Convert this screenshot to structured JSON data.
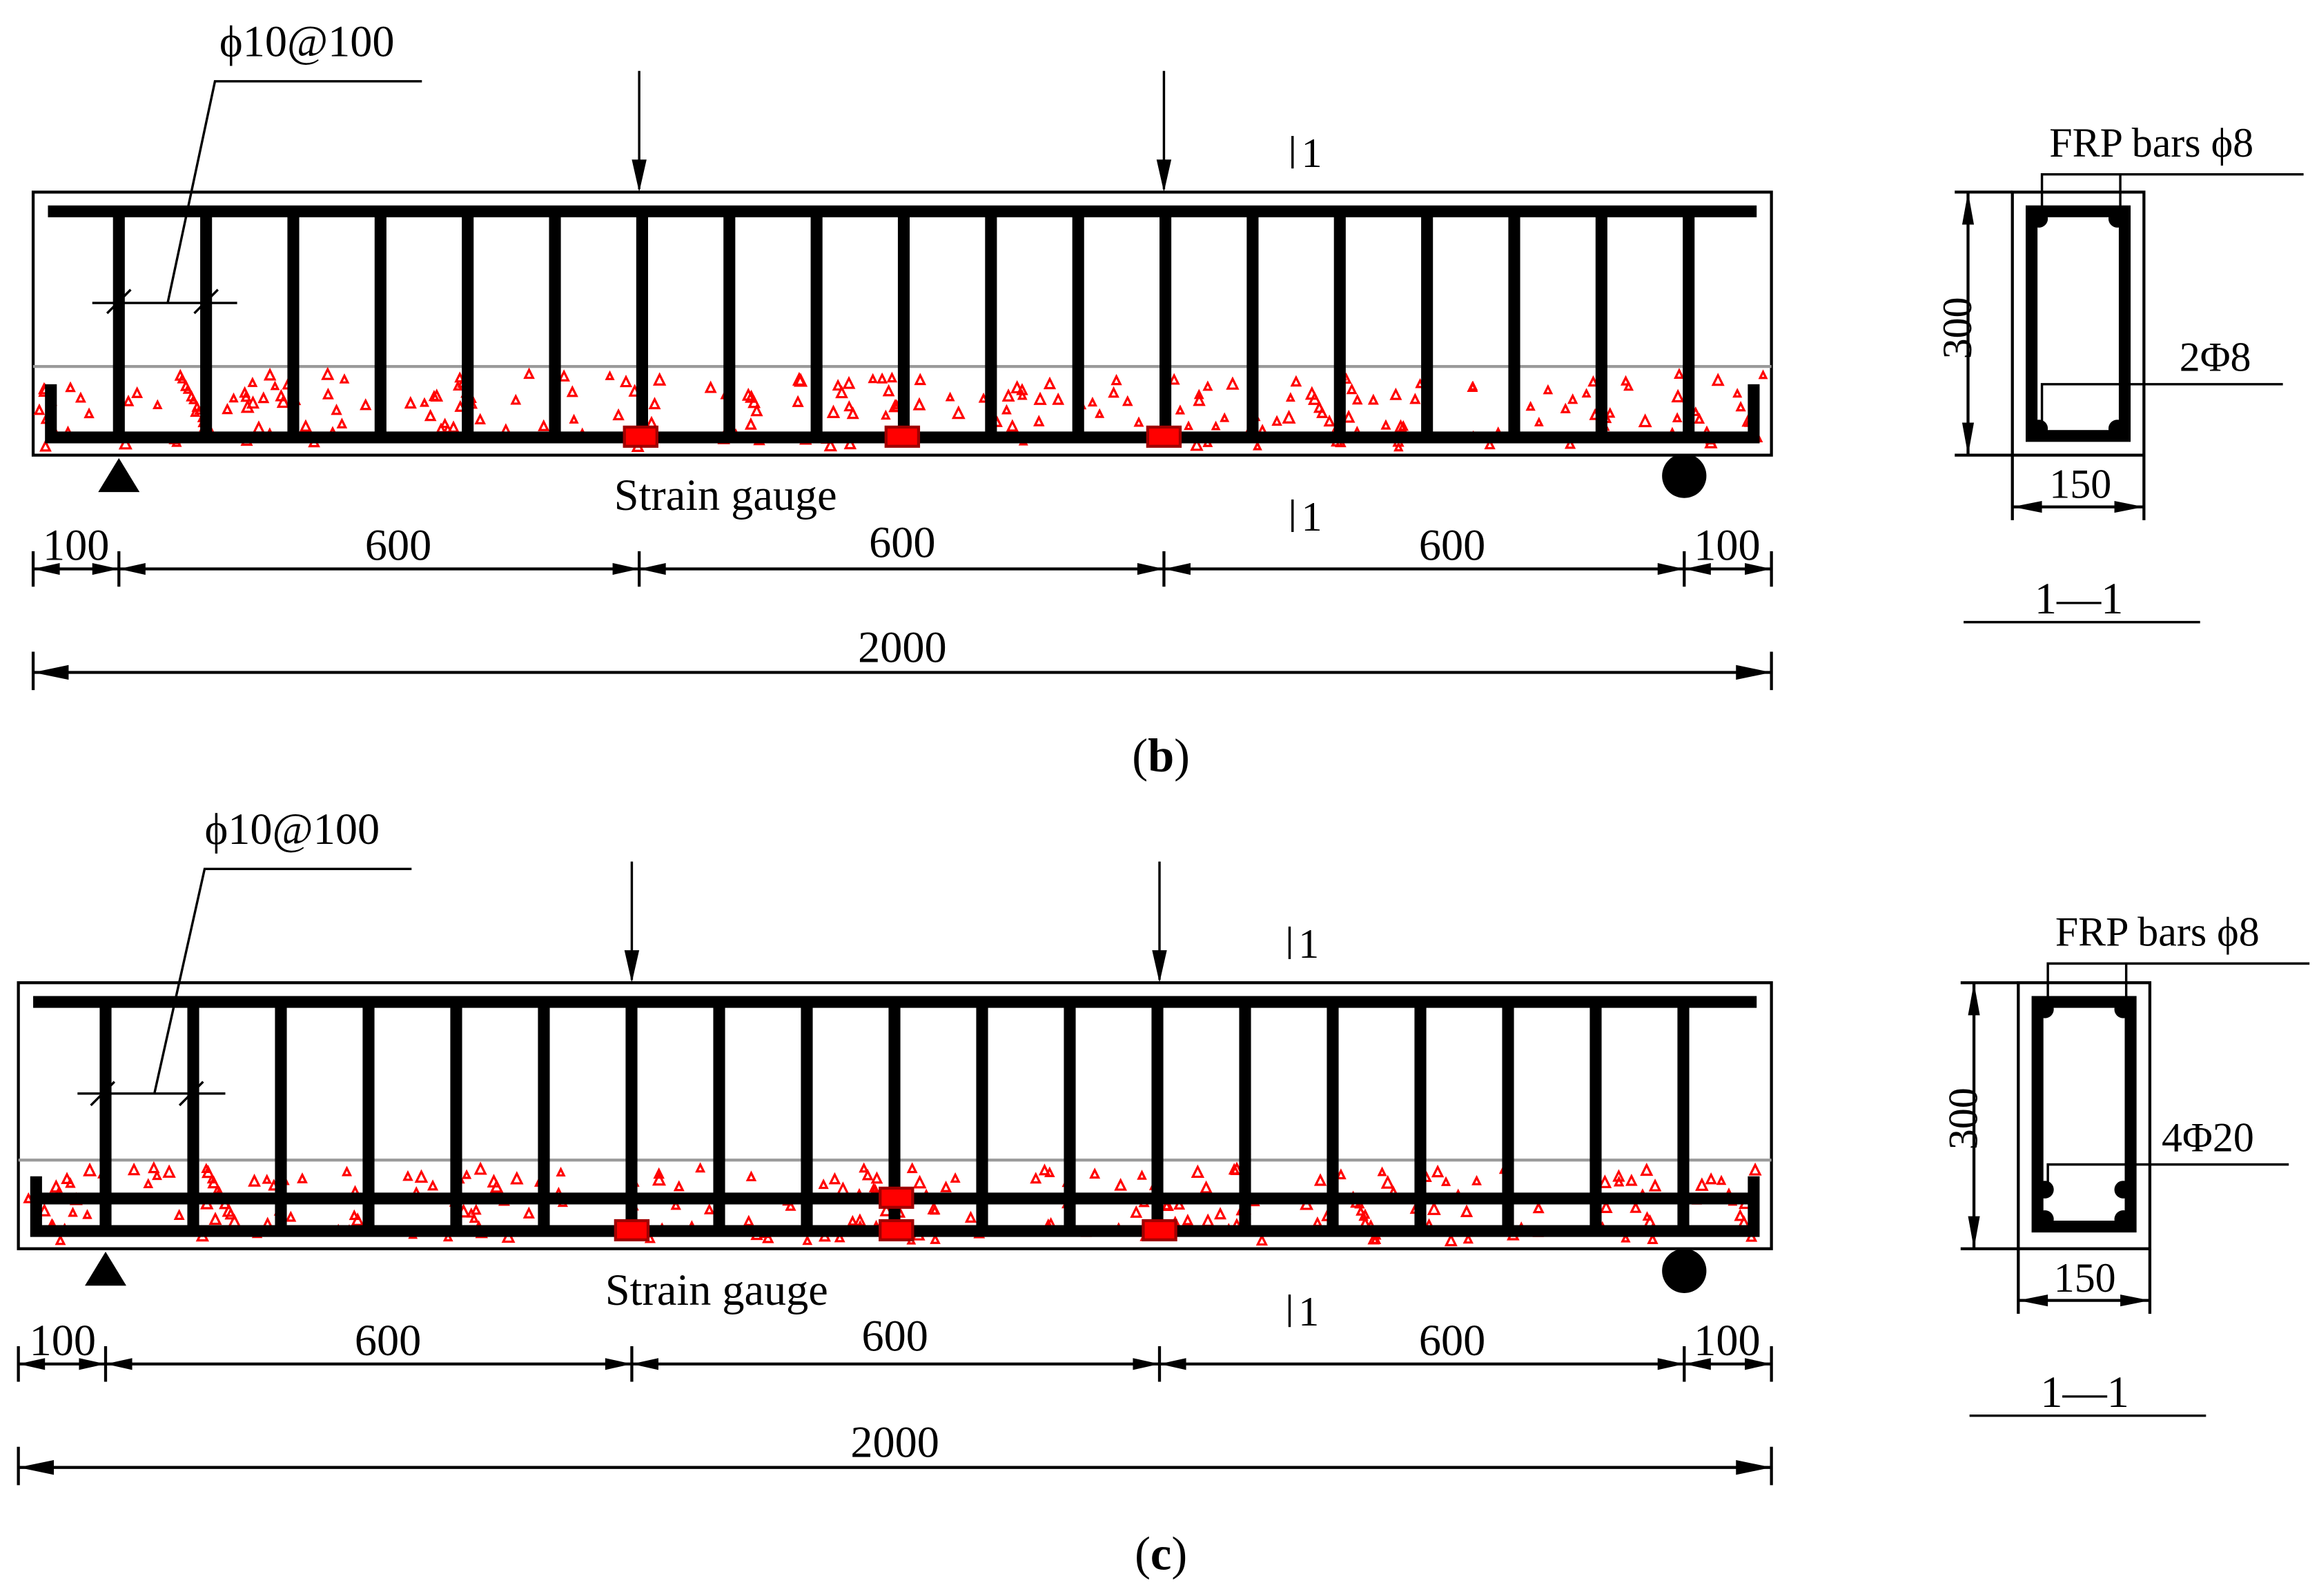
{
  "panels": [
    {
      "id": "b",
      "caption_letter": "b",
      "stirrup_label": "ϕ10@100",
      "section_bar_label": "FRP bars ϕ8",
      "section_bottom_label": "2Φ8",
      "section_id_top": "1",
      "section_id_bottom": "1",
      "section_name": "1—1",
      "section_height": "300",
      "section_width": "150",
      "gauge_label": "Strain gauge",
      "dims": [
        "100",
        "600",
        "600",
        "600",
        "100"
      ],
      "total_length": "2000",
      "bottom_layers": 1
    },
    {
      "id": "c",
      "caption_letter": "c",
      "stirrup_label": "ϕ10@100",
      "section_bar_label": "FRP bars ϕ8",
      "section_bottom_label": "4Φ20",
      "section_id_top": "1",
      "section_id_bottom": "1",
      "section_name": "1—1",
      "section_height": "300",
      "section_width": "150",
      "gauge_label": "Strain gauge",
      "dims": [
        "100",
        "600",
        "600",
        "600",
        "100"
      ],
      "total_length": "2000",
      "bottom_layers": 2
    }
  ],
  "colors": {
    "gauge": "#ff0000",
    "concrete_speck": "#ff0000",
    "line": "#000000"
  }
}
